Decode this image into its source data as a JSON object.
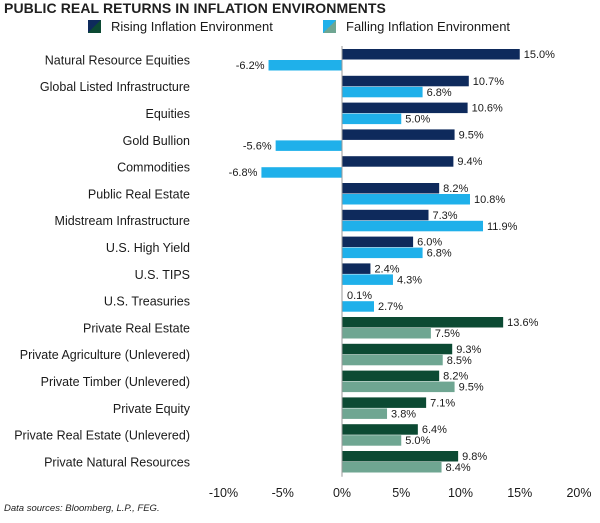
{
  "chart_data": {
    "type": "bar",
    "orientation": "horizontal",
    "title": "PUBLIC REAL RETURNS IN INFLATION ENVIRONMENTS",
    "legend": [
      {
        "label": "Rising Inflation Environment",
        "colors": [
          "#0e2a5c",
          "#0c4a33"
        ]
      },
      {
        "label": "Falling Inflation Environment",
        "colors": [
          "#1fb0ea",
          "#6fa692"
        ]
      }
    ],
    "categories": [
      "Natural Resource Equities",
      "Global Listed Infrastructure",
      "Equities",
      "Gold Bullion",
      "Commodities",
      "Public Real Estate",
      "Midstream Infrastructure",
      "U.S. High Yield",
      "U.S. TIPS",
      "U.S. Treasuries",
      "Private Real Estate",
      "Private Agriculture (Unlevered)",
      "Private Timber (Unlevered)",
      "Private Equity",
      "Private Real Estate (Unlevered)",
      "Private Natural Resources"
    ],
    "group": [
      "public",
      "public",
      "public",
      "public",
      "public",
      "public",
      "public",
      "public",
      "public",
      "public",
      "private",
      "private",
      "private",
      "private",
      "private",
      "private"
    ],
    "series": [
      {
        "name": "Rising Inflation Environment",
        "values": [
          15.0,
          10.7,
          10.6,
          9.5,
          9.4,
          8.2,
          7.3,
          6.0,
          2.4,
          null,
          13.6,
          9.3,
          8.2,
          7.1,
          6.4,
          9.8
        ],
        "labels": [
          "15.0%",
          "10.7%",
          "10.6%",
          "9.5%",
          "9.4%",
          "8.2%",
          "7.3%",
          "6.0%",
          "2.4%",
          "",
          "13.6%",
          "9.3%",
          "8.2%",
          "7.1%",
          "6.4%",
          "9.8%"
        ]
      },
      {
        "name": "Falling Inflation Environment",
        "values": [
          -6.2,
          6.8,
          5.0,
          -5.6,
          -6.8,
          10.8,
          11.9,
          6.8,
          4.3,
          2.7,
          7.5,
          8.5,
          9.5,
          3.8,
          5.0,
          8.4
        ],
        "labels": [
          "-6.2%",
          "6.8%",
          "5.0%",
          "-5.6%",
          "-6.8%",
          "10.8%",
          "11.9%",
          "6.8%",
          "4.3%",
          "2.7%",
          "7.5%",
          "8.5%",
          "9.5%",
          "3.8%",
          "5.0%",
          "8.4%"
        ]
      }
    ],
    "extra_labels": [
      {
        "category": "U.S. Treasuries",
        "text": "0.1%"
      }
    ],
    "xlim": [
      -10,
      20
    ],
    "xticks": [
      -10,
      -5,
      0,
      5,
      10,
      15,
      20
    ],
    "xtick_labels": [
      "-10%",
      "-5%",
      "0%",
      "5%",
      "10%",
      "15%",
      "20%"
    ],
    "colors": {
      "public_rising": "#0e2a5c",
      "public_falling": "#1fb0ea",
      "private_rising": "#0c4a33",
      "private_falling": "#6fa692"
    },
    "grid": false
  },
  "source_note": "Data sources: Bloomberg, L.P., FEG."
}
